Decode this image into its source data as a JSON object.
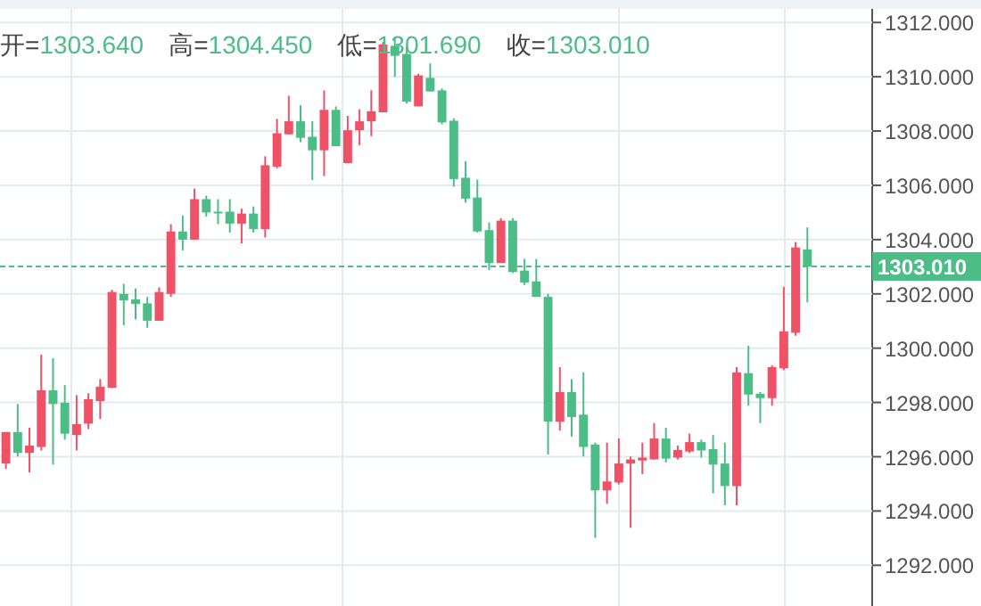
{
  "chart_data": {
    "type": "candlestick",
    "categories": [
      null,
      null,
      null,
      null,
      null,
      null,
      null,
      null,
      null,
      null,
      null,
      null,
      null,
      null,
      null,
      null,
      null,
      null,
      null,
      null,
      null,
      null,
      null,
      null,
      null,
      null,
      null,
      null,
      null,
      null,
      null,
      null,
      null,
      null,
      null,
      null,
      null,
      null,
      null,
      null,
      null,
      null,
      null,
      null,
      null,
      null,
      null,
      null,
      null,
      null,
      null,
      null,
      null,
      null,
      null,
      null,
      null,
      null,
      null,
      null,
      null,
      null,
      null,
      null,
      null,
      null,
      null,
      null,
      null,
      null,
      null,
      null,
      null,
      null
    ],
    "ohlc": [
      [
        1295.75,
        1296.91,
        1295.55,
        1296.91
      ],
      [
        1296.91,
        1297.94,
        1296.01,
        1296.14
      ],
      [
        1296.14,
        1297.07,
        1295.42,
        1296.41
      ],
      [
        1296.36,
        1299.76,
        1296.23,
        1298.45
      ],
      [
        1298.45,
        1299.63,
        1295.71,
        1297.94
      ],
      [
        1297.99,
        1298.64,
        1296.63,
        1296.85
      ],
      [
        1296.8,
        1298.27,
        1296.23,
        1297.2
      ],
      [
        1297.22,
        1298.34,
        1297.02,
        1298.12
      ],
      [
        1298.05,
        1298.86,
        1297.39,
        1298.58
      ],
      [
        1298.54,
        1302.15,
        1298.54,
        1302.07
      ],
      [
        1302.0,
        1302.37,
        1300.84,
        1301.76
      ],
      [
        1301.8,
        1302.2,
        1301.06,
        1301.63
      ],
      [
        1301.65,
        1301.89,
        1300.75,
        1301.01
      ],
      [
        1301.01,
        1302.24,
        1301.01,
        1302.07
      ],
      [
        1302.0,
        1304.57,
        1301.89,
        1304.3
      ],
      [
        1304.3,
        1304.89,
        1303.6,
        1304.0
      ],
      [
        1304.0,
        1305.88,
        1304.0,
        1305.49
      ],
      [
        1305.49,
        1305.62,
        1304.85,
        1305.0
      ],
      [
        1305.03,
        1305.49,
        1304.57,
        1304.98
      ],
      [
        1305.03,
        1305.49,
        1304.26,
        1304.59
      ],
      [
        1304.59,
        1305.14,
        1303.86,
        1304.96
      ],
      [
        1304.96,
        1305.22,
        1304.26,
        1304.39
      ],
      [
        1304.39,
        1307.07,
        1304.08,
        1306.74
      ],
      [
        1306.69,
        1308.45,
        1306.63,
        1307.92
      ],
      [
        1307.88,
        1309.3,
        1307.88,
        1308.36
      ],
      [
        1308.36,
        1308.95,
        1307.59,
        1307.75
      ],
      [
        1307.79,
        1308.36,
        1306.19,
        1307.29
      ],
      [
        1307.29,
        1309.5,
        1306.34,
        1308.78
      ],
      [
        1308.78,
        1308.91,
        1307.44,
        1307.44
      ],
      [
        1306.82,
        1308.56,
        1306.82,
        1308.03
      ],
      [
        1308.03,
        1308.8,
        1307.48,
        1308.36
      ],
      [
        1308.36,
        1309.5,
        1307.81,
        1308.73
      ],
      [
        1308.69,
        1311.28,
        1308.69,
        1311.19
      ],
      [
        1311.14,
        1311.43,
        1310.0,
        1310.77
      ],
      [
        1310.84,
        1311.1,
        1309.02,
        1309.08
      ],
      [
        1308.91,
        1310.11,
        1308.91,
        1310.05
      ],
      [
        1309.96,
        1310.49,
        1309.46,
        1309.46
      ],
      [
        1309.5,
        1309.57,
        1308.25,
        1308.32
      ],
      [
        1308.38,
        1308.47,
        1305.95,
        1306.23
      ],
      [
        1306.28,
        1306.89,
        1305.36,
        1305.51
      ],
      [
        1305.55,
        1306.21,
        1304.26,
        1304.3
      ],
      [
        1304.35,
        1304.63,
        1302.88,
        1303.14
      ],
      [
        1303.14,
        1304.79,
        1303.14,
        1304.7
      ],
      [
        1304.7,
        1304.79,
        1302.77,
        1302.81
      ],
      [
        1302.86,
        1303.29,
        1302.33,
        1302.42
      ],
      [
        1302.46,
        1303.29,
        1301.89,
        1301.89
      ],
      [
        1301.89,
        1302.0,
        1296.08,
        1297.29
      ],
      [
        1297.29,
        1299.3,
        1296.96,
        1298.38
      ],
      [
        1298.38,
        1298.86,
        1296.74,
        1297.46
      ],
      [
        1297.55,
        1299.11,
        1296.01,
        1296.36
      ],
      [
        1296.45,
        1296.52,
        1293.01,
        1294.76
      ],
      [
        1294.76,
        1296.52,
        1294.26,
        1295.09
      ],
      [
        1295.05,
        1296.67,
        1294.98,
        1295.75
      ],
      [
        1295.75,
        1296.01,
        1293.38,
        1295.9
      ],
      [
        1295.86,
        1296.52,
        1295.36,
        1295.97
      ],
      [
        1295.9,
        1297.24,
        1295.9,
        1296.67
      ],
      [
        1296.67,
        1297.07,
        1295.79,
        1295.93
      ],
      [
        1295.97,
        1296.41,
        1295.9,
        1296.25
      ],
      [
        1296.19,
        1296.85,
        1296.14,
        1296.54
      ],
      [
        1296.54,
        1296.63,
        1295.97,
        1296.23
      ],
      [
        1296.28,
        1296.8,
        1294.65,
        1295.71
      ],
      [
        1295.75,
        1296.52,
        1294.21,
        1294.92
      ],
      [
        1294.92,
        1299.3,
        1294.21,
        1299.11
      ],
      [
        1299.08,
        1300.09,
        1297.88,
        1298.29
      ],
      [
        1298.32,
        1298.38,
        1297.24,
        1298.16
      ],
      [
        1298.16,
        1299.37,
        1297.88,
        1299.3
      ],
      [
        1299.26,
        1302.26,
        1299.19,
        1300.62
      ],
      [
        1300.57,
        1303.91,
        1300.46,
        1303.71
      ],
      [
        1303.64,
        1304.45,
        1301.69,
        1303.01
      ],
      null,
      null,
      null,
      null,
      null
    ],
    "colors": [
      "#ef5266",
      "#4dbd88",
      "#ef5266",
      "#ef5266",
      "#4dbd88",
      "#4dbd88",
      "#ef5266",
      "#ef5266",
      "#ef5266",
      "#ef5266",
      "#4dbd88",
      "#4dbd88",
      "#4dbd88",
      "#ef5266",
      "#ef5266",
      "#4dbd88",
      "#ef5266",
      "#4dbd88",
      "#4dbd88",
      "#4dbd88",
      "#ef5266",
      "#4dbd88",
      "#ef5266",
      "#ef5266",
      "#ef5266",
      "#4dbd88",
      "#4dbd88",
      "#ef5266",
      "#4dbd88",
      "#ef5266",
      "#ef5266",
      "#ef5266",
      "#ef5266",
      "#4dbd88",
      "#4dbd88",
      "#ef5266",
      "#4dbd88",
      "#4dbd88",
      "#4dbd88",
      "#4dbd88",
      "#4dbd88",
      "#4dbd88",
      "#ef5266",
      "#4dbd88",
      "#4dbd88",
      "#4dbd88",
      "#4dbd88",
      "#ef5266",
      "#4dbd88",
      "#4dbd88",
      "#4dbd88",
      "#ef5266",
      "#ef5266",
      "#ef5266",
      "#ef5266",
      "#ef5266",
      "#4dbd88",
      "#ef5266",
      "#ef5266",
      "#4dbd88",
      "#4dbd88",
      "#4dbd88",
      "#ef5266",
      "#4dbd88",
      "#4dbd88",
      "#ef5266",
      "#ef5266",
      "#ef5266",
      "#4dbd88",
      null,
      null,
      null,
      null,
      null
    ],
    "ylim": [
      1290.5,
      1312.5
    ],
    "yticks": [
      {
        "value": 1292,
        "label": "1292.000"
      },
      {
        "value": 1294,
        "label": "1294.000"
      },
      {
        "value": 1296,
        "label": "1296.000"
      },
      {
        "value": 1298,
        "label": "1298.000"
      },
      {
        "value": 1300,
        "label": "1300.000"
      },
      {
        "value": 1302,
        "label": "1302.000"
      },
      {
        "value": 1304,
        "label": "1304.000"
      },
      {
        "value": 1306,
        "label": "1306.000"
      },
      {
        "value": 1308,
        "label": "1308.000"
      },
      {
        "value": 1310,
        "label": "1310.000"
      },
      {
        "value": 1312,
        "label": "1312.000"
      }
    ],
    "grid": "y",
    "tick_labels": "y",
    "ref_lines": [
      {
        "axis": "y",
        "value": 1303.01,
        "label": "1303.010",
        "color": "#4dbd88",
        "line_style": "dashed"
      }
    ],
    "annotations": [
      "开=1303.640",
      "高=1304.450",
      "低=1301.690",
      "收=1303.010"
    ]
  }
}
